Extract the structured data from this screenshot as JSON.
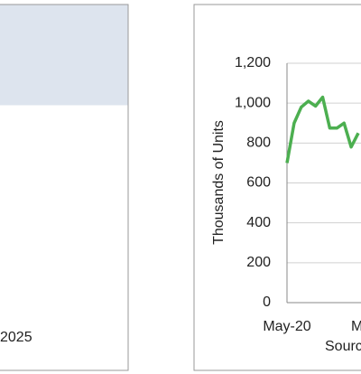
{
  "left_panel": {
    "texts": [
      ")",
      "2025"
    ]
  },
  "chart_data": {
    "type": "line",
    "y_axis_label": "Thousands of Units",
    "source": "Sourc",
    "categories": [
      "May-20",
      null,
      null,
      null,
      null,
      null,
      null,
      null,
      null,
      null,
      null,
      null,
      "M"
    ],
    "series": [
      {
        "name": "Units",
        "color": "#4caf50",
        "values": [
          700,
          900,
          980,
          1010,
          985,
          1030,
          875,
          875,
          900,
          780,
          850,
          null,
          null
        ]
      }
    ],
    "ylim": [
      0,
      1200
    ],
    "yticks": [
      0,
      200,
      400,
      600,
      800,
      {
        "value": 1000,
        "label": "1,000"
      },
      {
        "value": 1200,
        "label": "1,200"
      }
    ],
    "grid": true
  }
}
